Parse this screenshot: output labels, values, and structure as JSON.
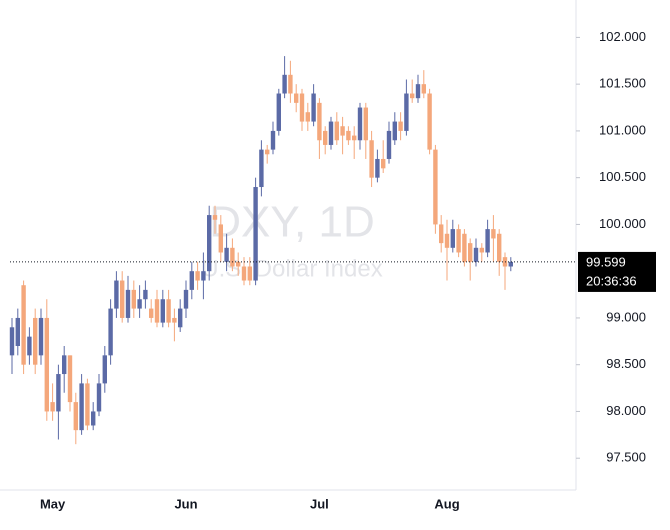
{
  "chart_data": {
    "type": "candlestick",
    "watermark_title": "DXY, 1D",
    "watermark_subtitle": "U.S. Dollar Index",
    "countdown": "20:36:36",
    "up_color": "#5b6aa6",
    "down_color": "#f4a77b",
    "categories": [
      null,
      null,
      null,
      null,
      null,
      null,
      null,
      "May",
      null,
      null,
      null,
      null,
      null,
      null,
      null,
      null,
      null,
      null,
      null,
      null,
      null,
      null,
      null,
      null,
      null,
      null,
      null,
      null,
      null,
      null,
      "Jun",
      null,
      null,
      null,
      null,
      null,
      null,
      null,
      null,
      null,
      null,
      null,
      null,
      null,
      null,
      null,
      null,
      null,
      null,
      null,
      null,
      null,
      null,
      "Jul",
      null,
      null,
      null,
      null,
      null,
      null,
      null,
      null,
      null,
      null,
      null,
      null,
      null,
      null,
      null,
      null,
      null,
      null,
      null,
      null,
      null,
      "Aug",
      null,
      null,
      null,
      null,
      null,
      null,
      null,
      null,
      null,
      null,
      null
    ],
    "open": [
      98.6,
      98.7,
      99.35,
      98.6,
      99.0,
      98.6,
      99.0,
      98.1,
      98.0,
      98.4,
      98.6,
      98.1,
      97.8,
      98.3,
      97.85,
      98.0,
      98.3,
      98.6,
      99.1,
      99.4,
      99.0,
      99.3,
      99.1,
      99.2,
      99.1,
      99.2,
      98.95,
      99.2,
      99.0,
      98.9,
      99.1,
      99.3,
      99.5,
      99.4,
      99.5,
      100.1,
      100.0,
      99.6,
      99.75,
      99.6,
      99.55,
      99.55,
      99.4,
      100.4,
      100.8,
      100.8,
      101.0,
      101.4,
      101.6,
      101.4,
      101.4,
      101.2,
      101.1,
      101.3,
      101.0,
      100.85,
      101.1,
      101.05,
      101.0,
      100.95,
      100.9,
      101.25,
      100.9,
      100.5,
      100.7,
      100.7,
      100.9,
      101.1,
      101.0,
      101.4,
      101.35,
      101.5,
      101.4,
      100.8,
      100.0,
      99.9,
      99.75,
      99.95,
      99.9,
      99.8,
      99.6,
      99.75,
      99.7,
      99.95,
      99.9,
      99.65,
      99.55
    ],
    "high": [
      99.0,
      99.1,
      99.4,
      98.9,
      99.1,
      99.1,
      99.2,
      98.3,
      98.5,
      98.7,
      98.6,
      98.2,
      98.4,
      98.35,
      98.1,
      98.4,
      98.7,
      99.2,
      99.5,
      99.5,
      99.45,
      99.4,
      99.35,
      99.4,
      99.2,
      99.3,
      99.3,
      99.3,
      99.1,
      99.2,
      99.4,
      99.6,
      99.6,
      99.7,
      100.2,
      100.2,
      100.1,
      99.9,
      99.85,
      99.7,
      99.65,
      99.65,
      100.5,
      100.9,
      100.85,
      101.1,
      101.45,
      101.8,
      101.75,
      101.5,
      101.45,
      101.3,
      101.5,
      101.35,
      101.05,
      101.15,
      101.2,
      101.15,
      101.05,
      101.05,
      101.3,
      101.3,
      101.0,
      100.8,
      100.9,
      101.1,
      101.2,
      101.2,
      101.55,
      101.55,
      101.6,
      101.65,
      101.45,
      100.85,
      100.1,
      100.05,
      100.05,
      100.0,
      99.95,
      99.85,
      99.85,
      99.8,
      100.05,
      100.1,
      99.95,
      99.7,
      99.65
    ],
    "low": [
      98.4,
      98.6,
      98.4,
      98.5,
      98.4,
      98.5,
      97.9,
      97.9,
      97.7,
      98.2,
      98.0,
      97.65,
      97.75,
      97.8,
      97.8,
      97.95,
      98.2,
      98.5,
      99.0,
      98.95,
      98.95,
      99.0,
      99.0,
      99.1,
      98.95,
      98.9,
      98.9,
      98.9,
      98.75,
      98.85,
      99.0,
      99.2,
      99.3,
      99.2,
      99.4,
      99.9,
      99.6,
      99.5,
      99.5,
      99.45,
      99.35,
      99.35,
      99.35,
      100.3,
      100.65,
      100.75,
      100.95,
      101.35,
      101.3,
      101.2,
      101.0,
      101.0,
      101.05,
      100.7,
      100.75,
      100.8,
      100.85,
      100.75,
      100.85,
      100.7,
      100.8,
      100.7,
      100.4,
      100.45,
      100.55,
      100.65,
      100.85,
      100.9,
      100.95,
      101.3,
      101.3,
      101.35,
      100.75,
      99.9,
      99.7,
      99.4,
      99.7,
      99.65,
      99.55,
      99.4,
      99.55,
      99.6,
      99.65,
      99.6,
      99.45,
      99.3,
      99.5
    ],
    "close": [
      98.9,
      99.0,
      98.5,
      98.8,
      98.5,
      99.0,
      98.0,
      98.0,
      98.4,
      98.6,
      98.1,
      97.8,
      98.3,
      97.85,
      98.0,
      98.3,
      98.6,
      99.1,
      99.4,
      99.0,
      99.3,
      99.1,
      99.2,
      99.3,
      99.0,
      98.95,
      99.2,
      98.95,
      98.95,
      99.1,
      99.3,
      99.5,
      99.4,
      99.5,
      100.1,
      100.05,
      99.7,
      99.75,
      99.55,
      99.55,
      99.4,
      99.4,
      100.4,
      100.8,
      100.75,
      101.0,
      101.4,
      101.6,
      101.4,
      101.3,
      101.1,
      101.1,
      101.4,
      100.9,
      100.85,
      101.1,
      100.9,
      100.95,
      100.9,
      100.9,
      101.25,
      100.9,
      100.5,
      100.7,
      100.6,
      101.0,
      101.1,
      101.0,
      101.4,
      101.35,
      101.5,
      101.4,
      100.8,
      100.0,
      99.8,
      99.75,
      99.95,
      99.7,
      99.6,
      99.6,
      99.75,
      99.7,
      99.95,
      99.85,
      99.6,
      99.55,
      99.599
    ],
    "ylim": [
      97.16,
      102.4
    ],
    "yticks": [
      {
        "value": 102,
        "label": "102.000"
      },
      {
        "value": 101.5,
        "label": "101.500"
      },
      {
        "value": 101,
        "label": "101.000"
      },
      {
        "value": 100.5,
        "label": "100.500"
      },
      {
        "value": 100,
        "label": "100.000"
      },
      {
        "value": 99,
        "label": "99.000"
      },
      {
        "value": 98.5,
        "label": "98.500"
      },
      {
        "value": 98,
        "label": "98.000"
      },
      {
        "value": 97.5,
        "label": "97.500"
      }
    ]
  }
}
